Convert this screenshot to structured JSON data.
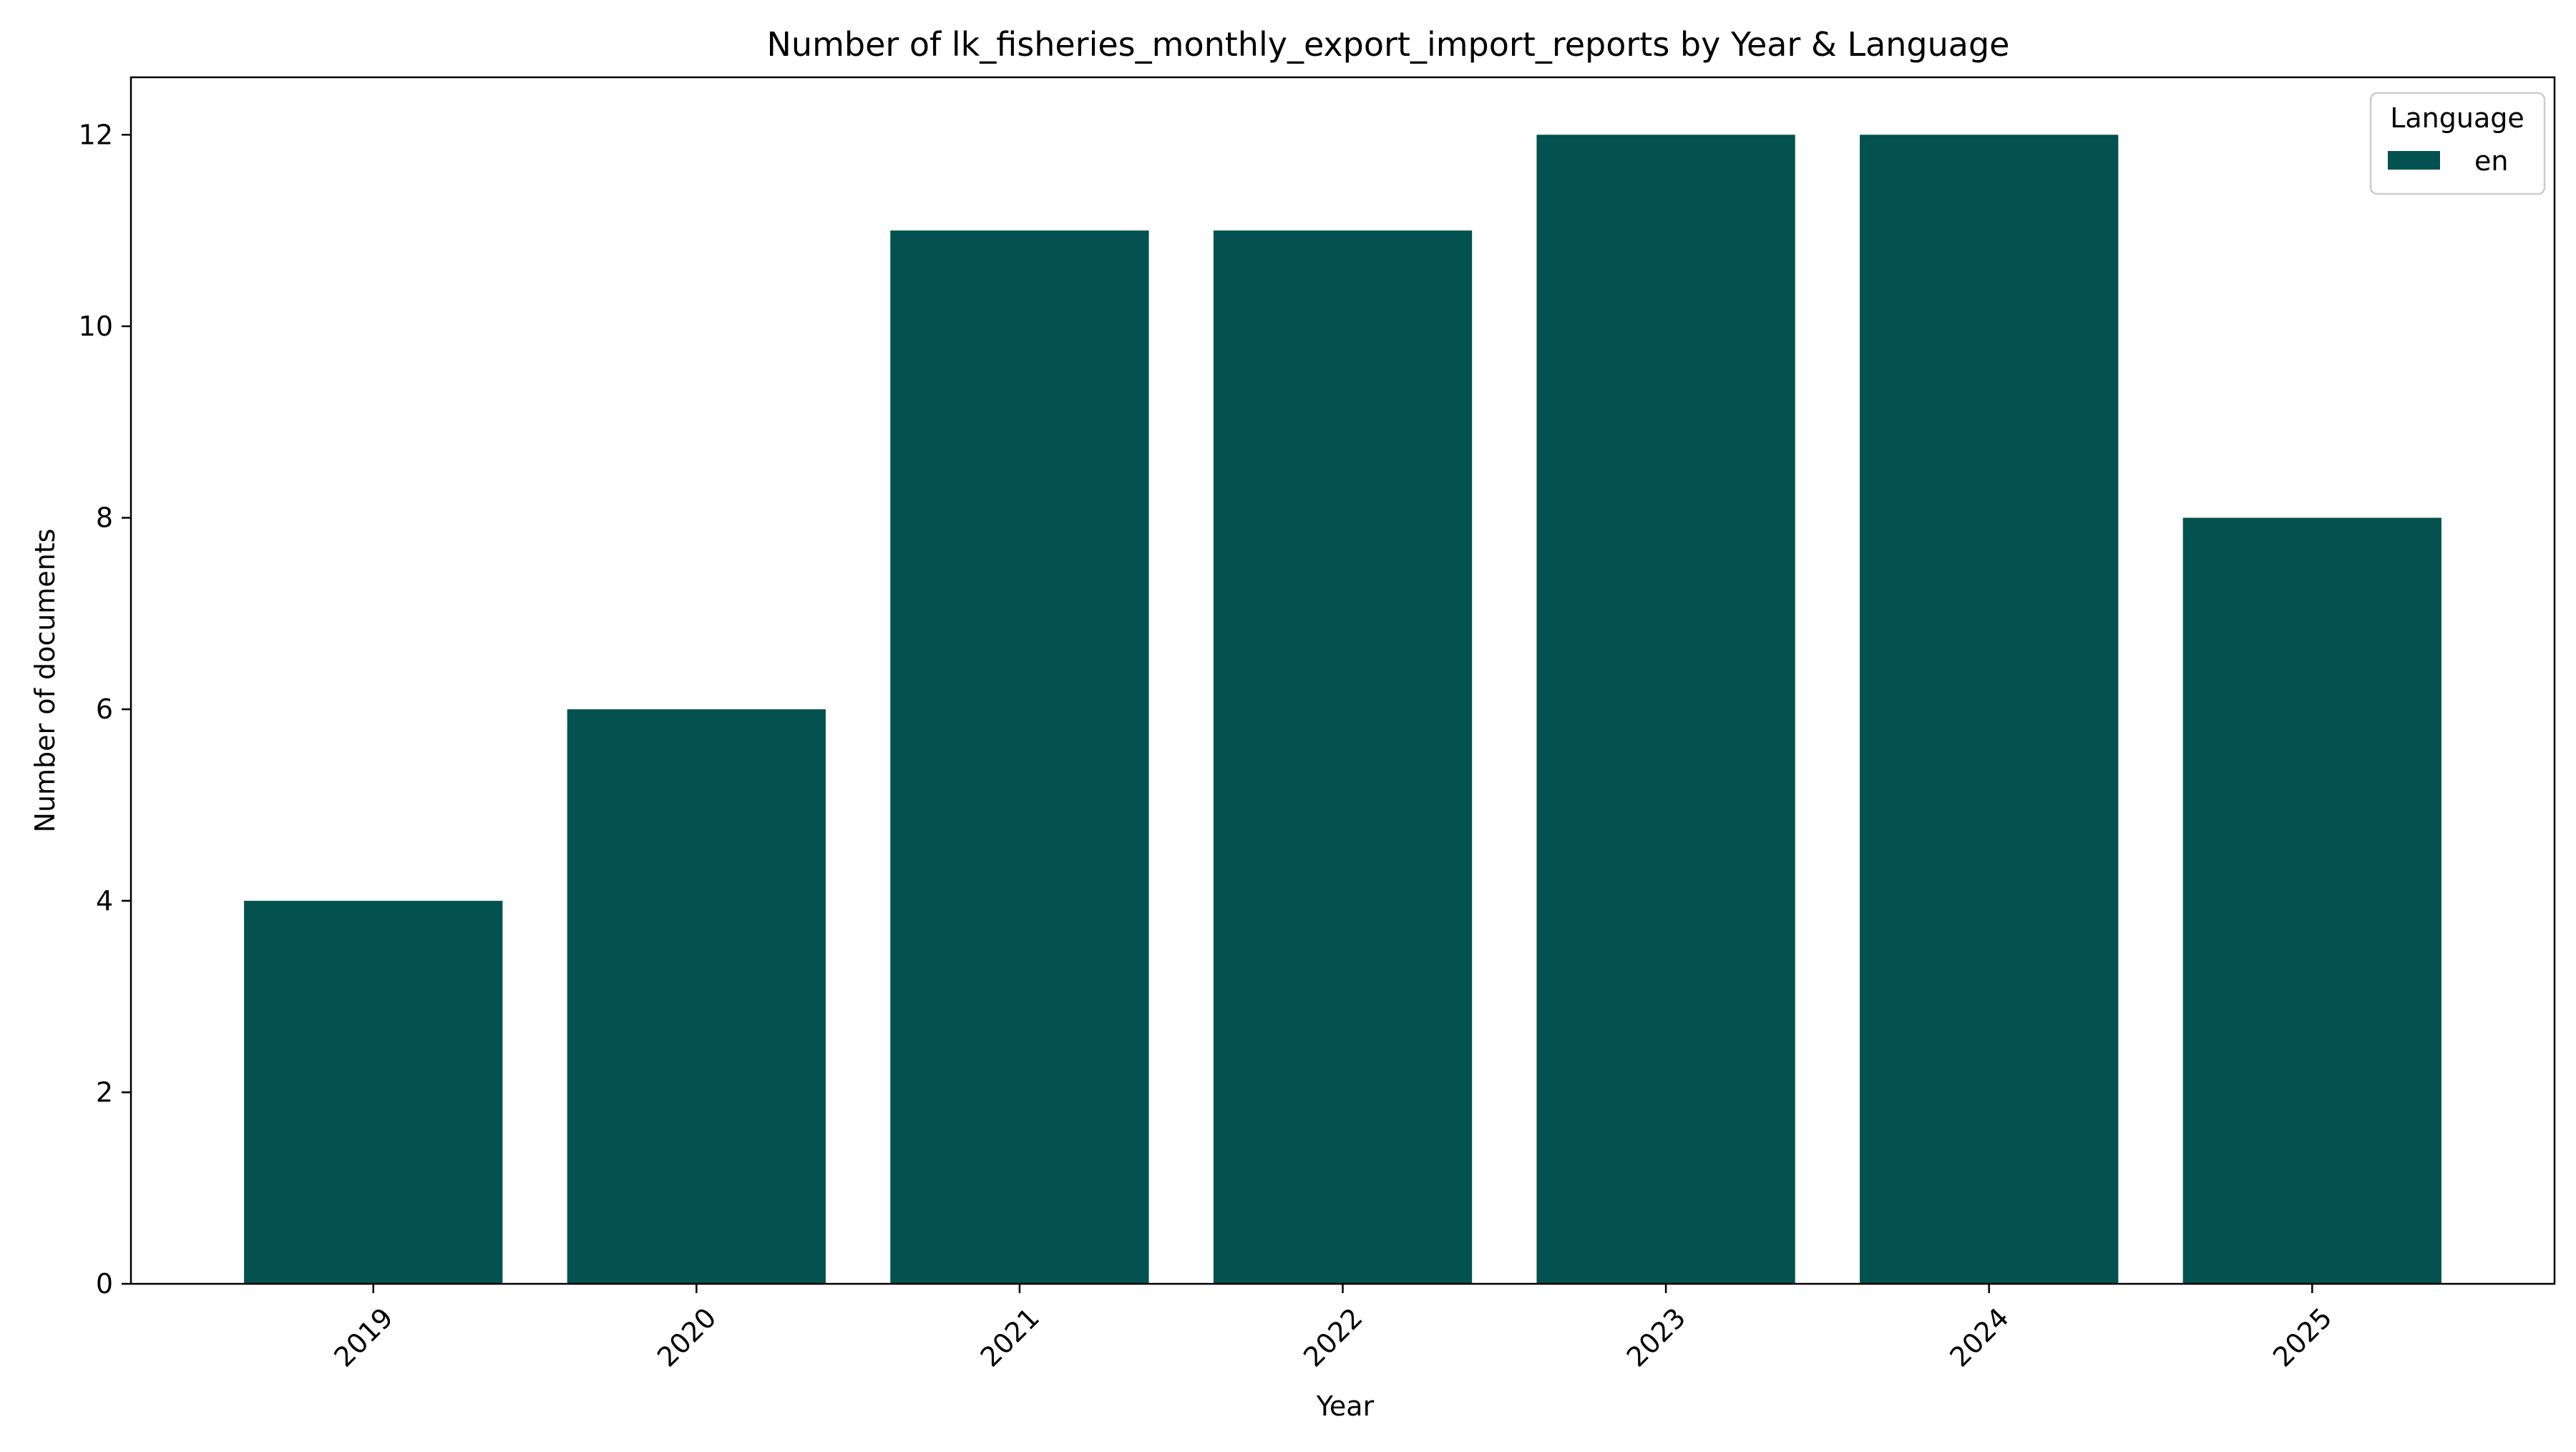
{
  "chart_data": {
    "type": "bar",
    "title": "Number of lk_fisheries_monthly_export_import_reports by Year & Language",
    "xlabel": "Year",
    "ylabel": "Number of documents",
    "categories": [
      "2019",
      "2020",
      "2021",
      "2022",
      "2023",
      "2024",
      "2025"
    ],
    "series": [
      {
        "name": "en",
        "values": [
          4,
          6,
          11,
          11,
          12,
          12,
          8
        ],
        "color": "#03524f"
      }
    ],
    "ylim": [
      0,
      12.6
    ],
    "yticks": [
      0,
      2,
      4,
      6,
      8,
      10,
      12
    ],
    "grid": false,
    "legend": {
      "title": "Language",
      "position": "top-right"
    },
    "xtick_rotation": 45
  }
}
